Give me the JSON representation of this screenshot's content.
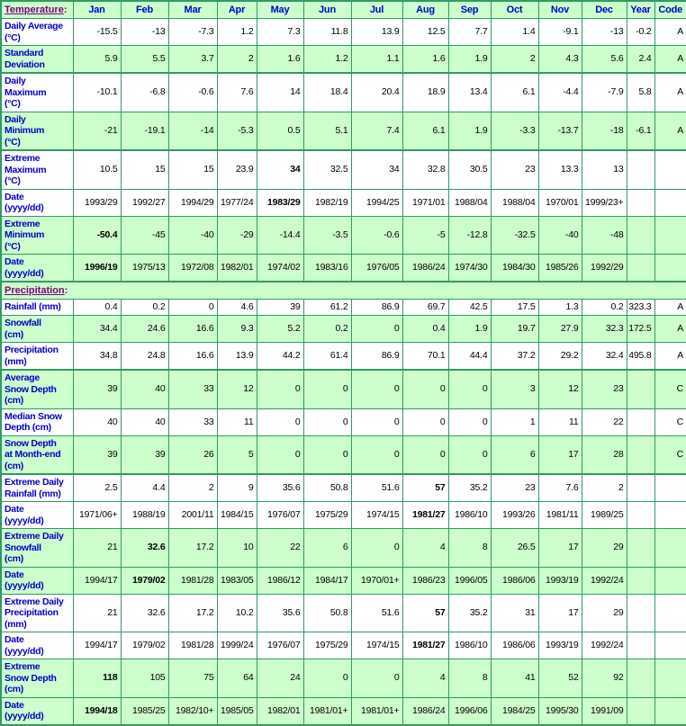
{
  "colors": {
    "cell_green": "#ccffcc",
    "cell_white": "#ffffff",
    "border_green": "#339966",
    "label_blue": "#0000cc",
    "section_purple": "#800080",
    "text_black": "#000000"
  },
  "table": {
    "columns": {
      "months": [
        "Jan",
        "Feb",
        "Mar",
        "Apr",
        "May",
        "Jun",
        "Jul",
        "Aug",
        "Sep",
        "Oct",
        "Nov",
        "Dec"
      ],
      "year_label": "Year",
      "code_label": "Code"
    },
    "sections": [
      {
        "title": "Temperature",
        "suffix": ":",
        "header_type": "months",
        "rows": [
          {
            "label": "Daily Average\n(°C)",
            "bg": "w",
            "group_start": false,
            "bold": [],
            "values": [
              "-15.5",
              "-13",
              "-7.3",
              "1.2",
              "7.3",
              "11.8",
              "13.9",
              "12.5",
              "7.7",
              "1.4",
              "-9.1",
              "-13"
            ],
            "year": "-0.2",
            "code": "A"
          },
          {
            "label": "Standard\nDeviation",
            "bg": "g",
            "group_start": false,
            "bold": [],
            "values": [
              "5.9",
              "5.5",
              "3.7",
              "2",
              "1.6",
              "1.2",
              "1.1",
              "1.6",
              "1.9",
              "2",
              "4.3",
              "5.6"
            ],
            "year": "2.4",
            "code": "A"
          },
          {
            "label": "Daily\nMaximum\n(°C)",
            "bg": "w",
            "group_start": true,
            "bold": [],
            "values": [
              "-10.1",
              "-6.8",
              "-0.6",
              "7.6",
              "14",
              "18.4",
              "20.4",
              "18.9",
              "13.4",
              "6.1",
              "-4.4",
              "-7.9"
            ],
            "year": "5.8",
            "code": "A"
          },
          {
            "label": "Daily\nMinimum\n(°C)",
            "bg": "g",
            "group_start": false,
            "bold": [],
            "values": [
              "-21",
              "-19.1",
              "-14",
              "-5.3",
              "0.5",
              "5.1",
              "7.4",
              "6.1",
              "1.9",
              "-3.3",
              "-13.7",
              "-18"
            ],
            "year": "-6.1",
            "code": "A"
          },
          {
            "label": "Extreme\nMaximum\n(°C)",
            "bg": "w",
            "group_start": true,
            "bold": [
              4
            ],
            "values": [
              "10.5",
              "15",
              "15",
              "23.9",
              "34",
              "32.5",
              "34",
              "32.8",
              "30.5",
              "23",
              "13.3",
              "13"
            ],
            "year": "",
            "code": ""
          },
          {
            "label": "Date\n(yyyy/dd)",
            "bg": "w",
            "group_start": false,
            "bold": [
              4
            ],
            "values": [
              "1993/29",
              "1992/27",
              "1994/29",
              "1977/24",
              "1983/29",
              "1982/19",
              "1994/25",
              "1971/01",
              "1988/04",
              "1988/04",
              "1970/01",
              "1999/23+"
            ],
            "year": "",
            "code": ""
          },
          {
            "label": "Extreme\nMinimum\n(°C)",
            "bg": "g",
            "group_start": false,
            "bold": [
              0
            ],
            "values": [
              "-50.4",
              "-45",
              "-40",
              "-29",
              "-14.4",
              "-3.5",
              "-0.6",
              "-5",
              "-12.8",
              "-32.5",
              "-40",
              "-48"
            ],
            "year": "",
            "code": ""
          },
          {
            "label": "Date\n(yyyy/dd)",
            "bg": "g",
            "group_start": false,
            "bold": [
              0
            ],
            "values": [
              "1996/19",
              "1975/13",
              "1972/08",
              "1982/01",
              "1974/02",
              "1983/16",
              "1976/05",
              "1986/24",
              "1974/30",
              "1984/30",
              "1985/26",
              "1992/29"
            ],
            "year": "",
            "code": ""
          }
        ]
      },
      {
        "title": "Precipitation",
        "suffix": ":",
        "header_type": "plain",
        "rows": [
          {
            "label": "Rainfall (mm)",
            "bg": "w",
            "group_start": false,
            "bold": [],
            "values": [
              "0.4",
              "0.2",
              "0",
              "4.6",
              "39",
              "61.2",
              "86.9",
              "69.7",
              "42.5",
              "17.5",
              "1.3",
              "0.2"
            ],
            "year": "323.3",
            "code": "A"
          },
          {
            "label": "Snowfall\n(cm)",
            "bg": "g",
            "group_start": false,
            "bold": [],
            "values": [
              "34.4",
              "24.6",
              "16.6",
              "9.3",
              "5.2",
              "0.2",
              "0",
              "0.4",
              "1.9",
              "19.7",
              "27.9",
              "32.3"
            ],
            "year": "172.5",
            "code": "A"
          },
          {
            "label": "Precipitation\n(mm)",
            "bg": "w",
            "group_start": false,
            "bold": [],
            "values": [
              "34.8",
              "24.8",
              "16.6",
              "13.9",
              "44.2",
              "61.4",
              "86.9",
              "70.1",
              "44.4",
              "37.2",
              "29.2",
              "32.4"
            ],
            "year": "495.8",
            "code": "A"
          },
          {
            "label": "Average\nSnow Depth\n(cm)",
            "bg": "g",
            "group_start": true,
            "bold": [],
            "values": [
              "39",
              "40",
              "33",
              "12",
              "0",
              "0",
              "0",
              "0",
              "0",
              "3",
              "12",
              "23"
            ],
            "year": "",
            "code": "C"
          },
          {
            "label": "Median Snow\nDepth (cm)",
            "bg": "w",
            "group_start": false,
            "bold": [],
            "values": [
              "40",
              "40",
              "33",
              "11",
              "0",
              "0",
              "0",
              "0",
              "0",
              "1",
              "11",
              "22"
            ],
            "year": "",
            "code": "C"
          },
          {
            "label": "Snow Depth\nat Month-end\n(cm)",
            "bg": "g",
            "group_start": false,
            "bold": [],
            "values": [
              "39",
              "39",
              "26",
              "5",
              "0",
              "0",
              "0",
              "0",
              "0",
              "6",
              "17",
              "28"
            ],
            "year": "",
            "code": "C"
          },
          {
            "label": "Extreme Daily\nRainfall (mm)",
            "bg": "w",
            "group_start": true,
            "bold": [
              7
            ],
            "values": [
              "2.5",
              "4.4",
              "2",
              "9",
              "35.6",
              "50.8",
              "51.6",
              "57",
              "35.2",
              "23",
              "7.6",
              "2"
            ],
            "year": "",
            "code": ""
          },
          {
            "label": "Date\n(yyyy/dd)",
            "bg": "w",
            "group_start": false,
            "bold": [
              7
            ],
            "values": [
              "1971/06+",
              "1988/19",
              "2001/11",
              "1984/15",
              "1976/07",
              "1975/29",
              "1974/15",
              "1981/27",
              "1986/10",
              "1993/26",
              "1981/11",
              "1989/25"
            ],
            "year": "",
            "code": ""
          },
          {
            "label": "Extreme Daily\nSnowfall\n(cm)",
            "bg": "g",
            "group_start": false,
            "bold": [
              1
            ],
            "values": [
              "21",
              "32.6",
              "17.2",
              "10",
              "22",
              "6",
              "0",
              "4",
              "8",
              "26.5",
              "17",
              "29"
            ],
            "year": "",
            "code": ""
          },
          {
            "label": "Date\n(yyyy/dd)",
            "bg": "g",
            "group_start": false,
            "bold": [
              1
            ],
            "values": [
              "1994/17",
              "1979/02",
              "1981/28",
              "1983/05",
              "1986/12",
              "1984/17",
              "1970/01+",
              "1986/23",
              "1996/05",
              "1986/06",
              "1993/19",
              "1992/24"
            ],
            "year": "",
            "code": ""
          },
          {
            "label": "Extreme Daily\nPrecipitation\n(mm)",
            "bg": "w",
            "group_start": false,
            "bold": [
              7
            ],
            "values": [
              "21",
              "32.6",
              "17.2",
              "10.2",
              "35.6",
              "50.8",
              "51.6",
              "57",
              "35.2",
              "31",
              "17",
              "29"
            ],
            "year": "",
            "code": ""
          },
          {
            "label": "Date\n(yyyy/dd)",
            "bg": "w",
            "group_start": false,
            "bold": [
              7
            ],
            "values": [
              "1994/17",
              "1979/02",
              "1981/28",
              "1999/24",
              "1976/07",
              "1975/29",
              "1974/15",
              "1981/27",
              "1986/10",
              "1986/06",
              "1993/19",
              "1992/24"
            ],
            "year": "",
            "code": ""
          },
          {
            "label": "Extreme\nSnow Depth\n(cm)",
            "bg": "g",
            "group_start": false,
            "bold": [
              0
            ],
            "values": [
              "118",
              "105",
              "75",
              "64",
              "24",
              "0",
              "0",
              "4",
              "8",
              "41",
              "52",
              "92"
            ],
            "year": "",
            "code": ""
          },
          {
            "label": "Date\n(yyyy/dd)",
            "bg": "g",
            "group_start": false,
            "bold": [
              0
            ],
            "values": [
              "1994/18",
              "1985/25",
              "1982/10+",
              "1985/05",
              "1982/01",
              "1981/01+",
              "1981/01+",
              "1986/24",
              "1996/06",
              "1984/25",
              "1995/30",
              "1991/09"
            ],
            "year": "",
            "code": ""
          }
        ]
      }
    ]
  }
}
